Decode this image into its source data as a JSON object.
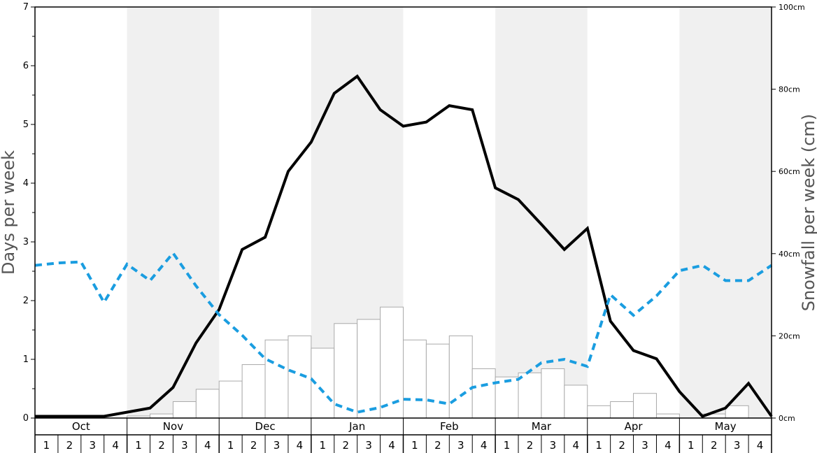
{
  "chart_data": {
    "type": "bar",
    "left_axis": {
      "label": "Days per week",
      "ticks": [
        "0",
        "1",
        "2",
        "3",
        "4",
        "5",
        "6",
        "7"
      ],
      "range": [
        0,
        7
      ]
    },
    "right_axis": {
      "label": "Snowfall per week (cm)",
      "ticks": [
        "0cm",
        "20cm",
        "40cm",
        "60cm",
        "80cm",
        "100cm"
      ],
      "range": [
        0,
        100
      ]
    },
    "months": [
      "Oct",
      "Nov",
      "Dec",
      "Jan",
      "Feb",
      "Mar",
      "Apr",
      "May"
    ],
    "weeks": [
      "1",
      "2",
      "3",
      "4"
    ],
    "shaded_months": [
      "Nov",
      "Jan",
      "Mar",
      "May"
    ],
    "grid": false,
    "series": [
      {
        "style": "bars",
        "axis": "right",
        "color": "#ffffff",
        "values": [
          0,
          0,
          0,
          0,
          0.5,
          1,
          4,
          7,
          9,
          13,
          19,
          20,
          17,
          23,
          24,
          27,
          19,
          18,
          20,
          12,
          10,
          11,
          12,
          8,
          3,
          4,
          6,
          1,
          0,
          1,
          3,
          0
        ]
      },
      {
        "style": "solid-line",
        "axis": "left",
        "color": "#000000",
        "values": [
          0.03,
          0.03,
          0.03,
          0.03,
          0.1,
          0.17,
          0.52,
          1.28,
          1.85,
          2.87,
          3.08,
          4.2,
          4.7,
          5.53,
          5.82,
          5.25,
          4.97,
          5.04,
          5.32,
          5.25,
          3.92,
          3.72,
          3.3,
          2.87,
          3.23,
          1.65,
          1.15,
          1.01,
          0.45,
          0.03,
          0.17,
          0.59,
          0.03
        ]
      },
      {
        "style": "dashed-line",
        "axis": "left",
        "color": "#1a9de0",
        "values": [
          2.6,
          2.64,
          2.66,
          1.97,
          2.62,
          2.34,
          2.81,
          2.25,
          1.76,
          1.41,
          1.01,
          0.82,
          0.67,
          0.24,
          0.1,
          0.18,
          0.32,
          0.31,
          0.24,
          0.52,
          0.6,
          0.66,
          0.94,
          1.0,
          0.88,
          2.1,
          1.75,
          2.08,
          2.51,
          2.6,
          2.34,
          2.34,
          2.6
        ]
      }
    ]
  }
}
